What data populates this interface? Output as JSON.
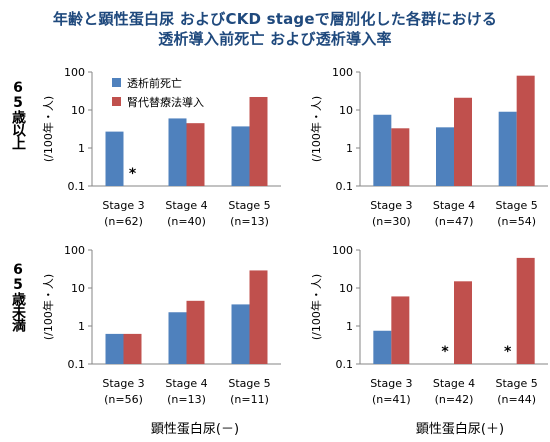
{
  "title_line1": "年齢と顕性蛋白尿 およびCKD stageで層別化した各群における",
  "title_line2": "透析導入前死亡 および透析導入率",
  "row_labels": [
    "65歳以上",
    "65歳未満"
  ],
  "x_captions": [
    "顕性蛋白尿(－)",
    "顕性蛋白尿(＋)"
  ],
  "y_axis_label": "(/100年・人)",
  "y_ticks": [
    "0.1",
    "1",
    "10",
    "100"
  ],
  "colors": {
    "pre_dialysis_death": "#4f81bd",
    "renal_replacement": "#c0504d"
  },
  "chart_data": [
    {
      "type": "bar",
      "y_scale": "log",
      "ylim": [
        0.1,
        100
      ],
      "categories": [
        "Stage 3",
        "Stage 4",
        "Stage 5"
      ],
      "category_n": [
        "(n=62)",
        "(n=40)",
        "(n=13)"
      ],
      "series": [
        {
          "name": "透析前死亡",
          "values": [
            2.7,
            6.0,
            3.7
          ]
        },
        {
          "name": "腎代替療法導入",
          "values": [
            null,
            4.5,
            22
          ]
        }
      ],
      "annotations": [
        {
          "category": "Stage 3",
          "series": "腎代替療法導入",
          "text": "*"
        }
      ],
      "legend": "top-left"
    },
    {
      "type": "bar",
      "y_scale": "log",
      "ylim": [
        0.1,
        100
      ],
      "categories": [
        "Stage 3",
        "Stage 4",
        "Stage 5"
      ],
      "category_n": [
        "(n=30)",
        "(n=47)",
        "(n=54)"
      ],
      "series": [
        {
          "name": "透析前死亡",
          "values": [
            7.5,
            3.5,
            9
          ]
        },
        {
          "name": "腎代替療法導入",
          "values": [
            3.3,
            21,
            80
          ]
        }
      ],
      "annotations": []
    },
    {
      "type": "bar",
      "y_scale": "log",
      "ylim": [
        0.1,
        100
      ],
      "categories": [
        "Stage 3",
        "Stage 4",
        "Stage 5"
      ],
      "category_n": [
        "(n=56)",
        "(n=13)",
        "(n=11)"
      ],
      "series": [
        {
          "name": "透析前死亡",
          "values": [
            0.62,
            2.3,
            3.7
          ]
        },
        {
          "name": "腎代替療法導入",
          "values": [
            0.62,
            4.6,
            29
          ]
        }
      ],
      "annotations": []
    },
    {
      "type": "bar",
      "y_scale": "log",
      "ylim": [
        0.1,
        100
      ],
      "categories": [
        "Stage 3",
        "Stage 4",
        "Stage 5"
      ],
      "category_n": [
        "(n=41)",
        "(n=42)",
        "(n=44)"
      ],
      "series": [
        {
          "name": "透析前死亡",
          "values": [
            0.75,
            null,
            null
          ]
        },
        {
          "name": "腎代替療法導入",
          "values": [
            6,
            15,
            62
          ]
        }
      ],
      "annotations": [
        {
          "category": "Stage 4",
          "series": "透析前死亡",
          "text": "*"
        },
        {
          "category": "Stage 5",
          "series": "透析前死亡",
          "text": "*"
        }
      ]
    }
  ]
}
